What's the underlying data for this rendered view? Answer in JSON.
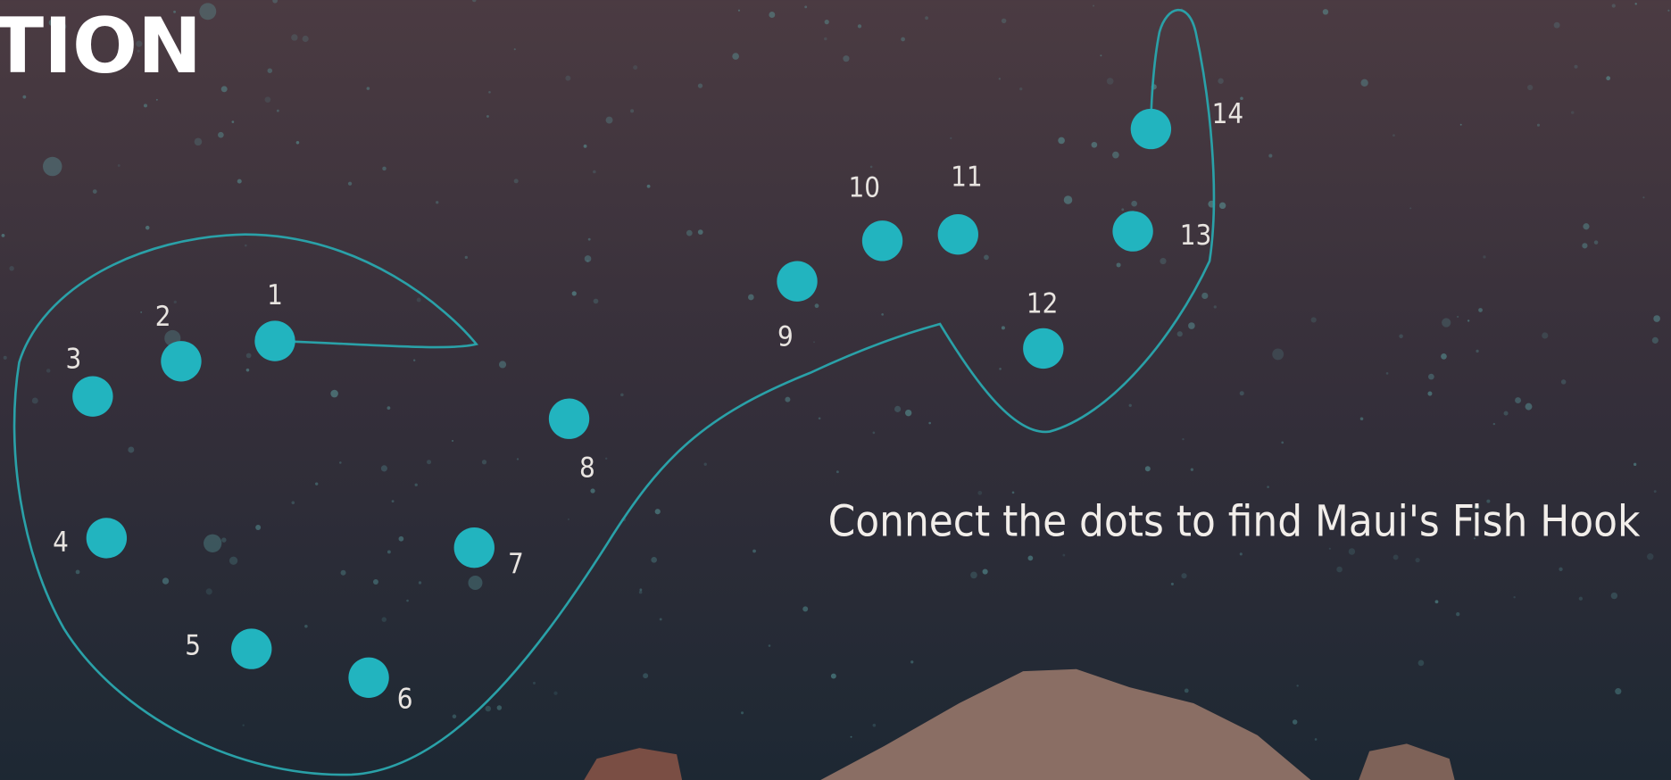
{
  "header": {
    "title": "TION"
  },
  "dots": [
    {
      "label": "1"
    },
    {
      "label": "2"
    },
    {
      "label": "3"
    },
    {
      "label": "4"
    },
    {
      "label": "5"
    },
    {
      "label": "6"
    },
    {
      "label": "7"
    },
    {
      "label": "8"
    },
    {
      "label": "9"
    },
    {
      "label": "10"
    },
    {
      "label": "11"
    },
    {
      "label": "12"
    },
    {
      "label": "13"
    },
    {
      "label": "14"
    }
  ],
  "instruction": "Connect the dots to find Maui's Fish Hook"
}
